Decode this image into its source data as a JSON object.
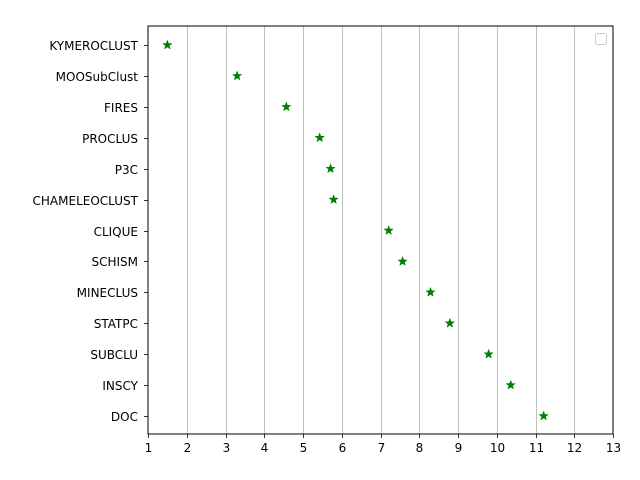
{
  "chart_data": {
    "type": "scatter",
    "title": "",
    "xlabel": "",
    "ylabel": "",
    "xlim": [
      1,
      13
    ],
    "x_ticks": [
      1,
      2,
      3,
      4,
      5,
      6,
      7,
      8,
      9,
      10,
      11,
      12,
      13
    ],
    "grid": "vertical",
    "legend": "top-right (empty)",
    "marker": "star",
    "color": "#008000",
    "categories": [
      "KYMEROCLUST",
      "MOOSubClust",
      "FIRES",
      "PROCLUS",
      "P3C",
      "CHAMELEOCLUST",
      "CLIQUE",
      "SCHISM",
      "MINECLUS",
      "STATPC",
      "SUBCLU",
      "INSCY",
      "DOC"
    ],
    "values": [
      1.5,
      3.3,
      4.57,
      5.43,
      5.71,
      5.79,
      7.21,
      7.57,
      8.29,
      8.79,
      9.79,
      10.36,
      11.21
    ]
  }
}
